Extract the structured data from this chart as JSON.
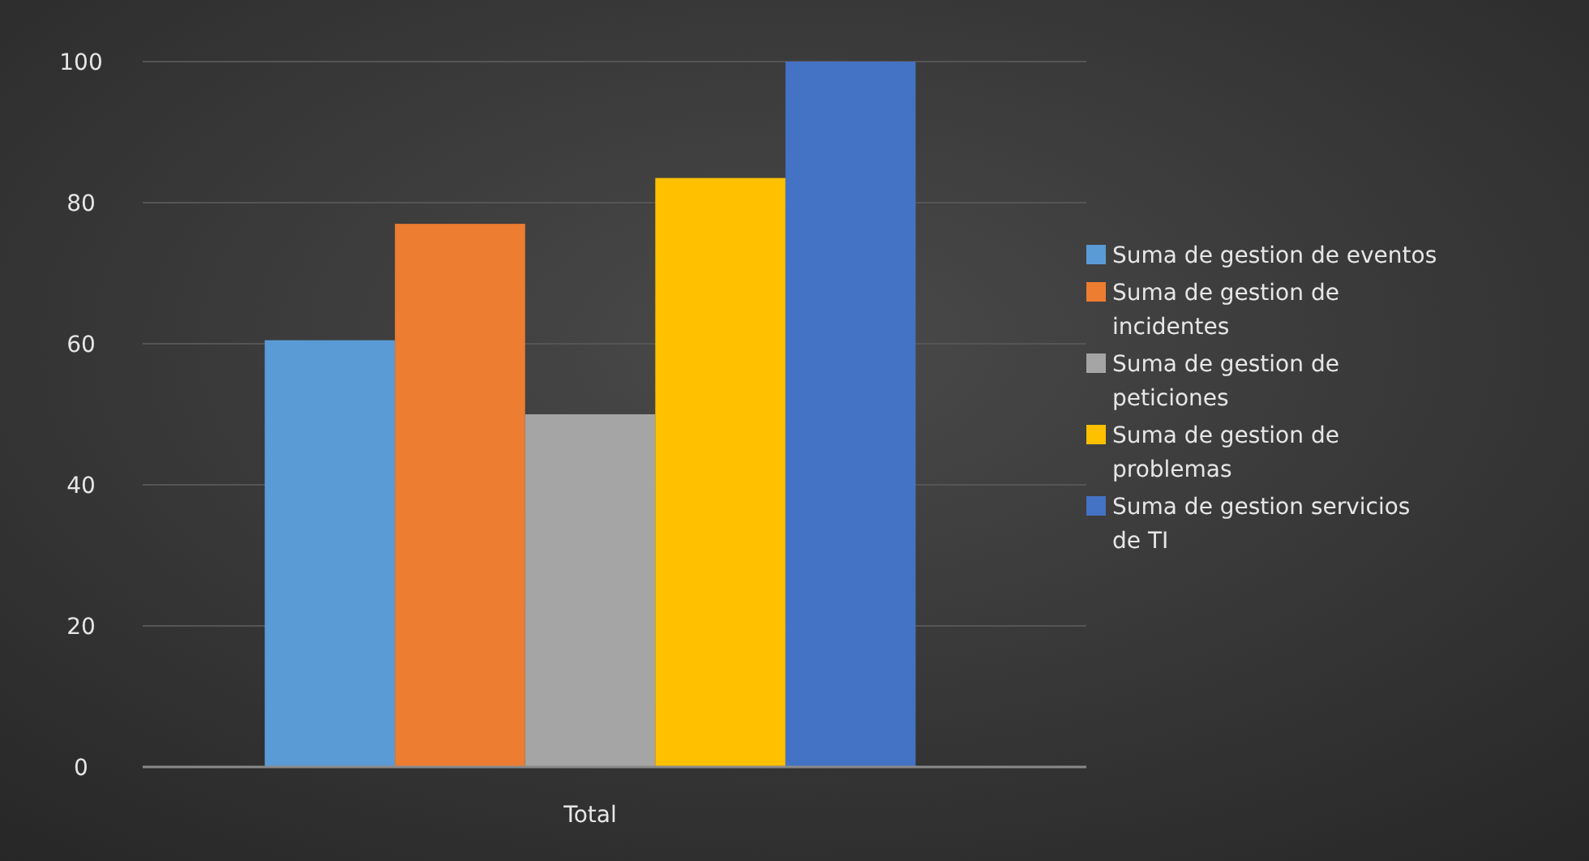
{
  "chart_data": {
    "type": "bar",
    "categories": [
      "Total"
    ],
    "series": [
      {
        "name": "Suma de gestion de eventos",
        "color": "#5b9bd5",
        "values": [
          60.5
        ]
      },
      {
        "name": "Suma de gestion de incidentes",
        "color": "#ed7d31",
        "values": [
          77
        ]
      },
      {
        "name": "Suma de gestion de peticiones",
        "color": "#a5a5a5",
        "values": [
          50
        ]
      },
      {
        "name": "Suma de gestion de problemas",
        "color": "#ffc000",
        "values": [
          83.5
        ]
      },
      {
        "name": "Suma de gestion servicios de TI",
        "color": "#4472c4",
        "values": [
          100
        ]
      }
    ],
    "ylim": [
      0,
      100
    ],
    "yticks": [
      0,
      20,
      40,
      60,
      80,
      100
    ],
    "grid": "y",
    "legend": "right"
  }
}
